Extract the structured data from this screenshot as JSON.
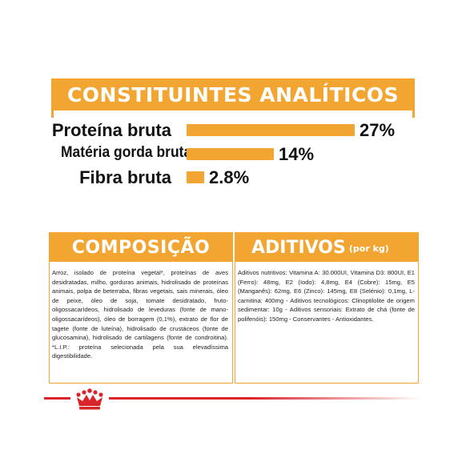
{
  "analytics": {
    "title": "CONSTITUINTES ANALÍTICOS",
    "rows": [
      {
        "label": "Proteína bruta",
        "value": "27%",
        "percent": 27
      },
      {
        "label": "Matéria gorda bruta",
        "value": "14%",
        "percent": 14
      },
      {
        "label": "Fibra bruta",
        "value": "2.8%",
        "percent": 2.8
      }
    ]
  },
  "composicao": {
    "title": "COMPOSIÇÃO",
    "text": "Arroz, isolado de proteína vegetal*, proteínas de aves desidratadas, milho, gorduras animais, hidrolisado de proteínas animais, polpa de beterraba, fibras vegetais, sais minerais, óleo de peixe, óleo de soja, tomate desidratado, fruto-oligossacarídeos, hidrolisado de leveduras (fonte de mano-oligossacarídeos), óleo de borragem (0,1%), extrato de flor de tagete (fonte de luteína), hidrolisado de crustáceos (fonte de glucosamina), hidrolisado de cartilagens (fonte de condroitina). *L.I.P.: proteína selecionada pela sua elevadíssima digestibilidade."
  },
  "aditivos": {
    "title": "ADITIVOS",
    "subtitle": "(por kg)",
    "text": "Aditivos nutritivos: Vitamina A: 30.000UI, Vitamina D3: 800UI, E1 (Ferro): 48mg, E2 (Iodo): 4,8mg, E4 (Cobre): 15mg, E5 (Manganês): 62mg, E6 (Zinco): 145mg, E8 (Selénio): 0,1mg, L-carnitina: 400mg - Aditivos tecnológicos: Clinoptilolite de origem sedimentar: 10g - Aditivos sensoriais: Extrato de chá (fonte de polifenóis): 150mg - Conservantes - Antioxidantes."
  },
  "colors": {
    "accent": "#f2a531",
    "brand_red": "#d9252a"
  },
  "icons": {
    "crown": "royal-canin-crown-icon"
  }
}
